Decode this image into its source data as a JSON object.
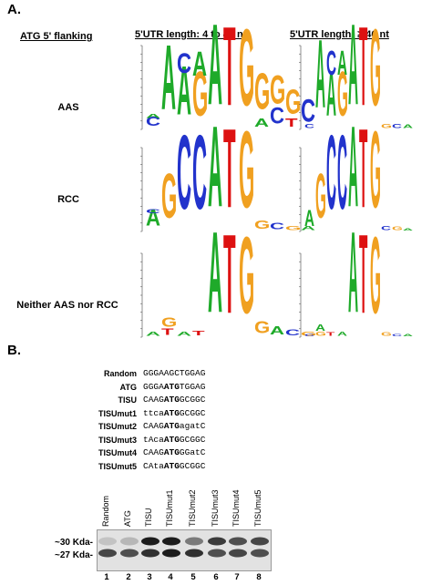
{
  "panelA": {
    "letter": "A.",
    "header_left": "ATG  5' flanking",
    "header_col1": "5'UTR length: 4 to 45 nt",
    "header_col2": "5'UTR length: ≥ 46 nt",
    "rows": [
      {
        "label": "AAS"
      },
      {
        "label": "RCC"
      },
      {
        "label": "Neither AAS nor RCC"
      }
    ],
    "logo_colors": {
      "A": "#1faa2a",
      "C": "#2233cc",
      "G": "#f0a020",
      "T": "#dd1111"
    }
  },
  "panelB": {
    "letter": "B.",
    "sequences": [
      {
        "name": "Random",
        "pre": "GGGAAGCTGGAG",
        "atg": "",
        "post": ""
      },
      {
        "name": "ATG",
        "pre": "GGGA",
        "atg": "ATG",
        "post": "TGGAG"
      },
      {
        "name": "TISU",
        "pre": "CAAG",
        "atg": "ATG",
        "post": "GCGGC"
      },
      {
        "name": "TISUmut1",
        "pre": "ttca",
        "atg": "ATG",
        "post": "GCGGC"
      },
      {
        "name": "TISUmut2",
        "pre": "CAAG",
        "atg": "ATG",
        "post": "agatC"
      },
      {
        "name": "TISUmut3",
        "pre": "tAca",
        "atg": "ATG",
        "post": "GCGGC"
      },
      {
        "name": "TISUmut4",
        "pre": "CAAG",
        "atg": "ATG",
        "post": "GGatC"
      },
      {
        "name": "TISUmut5",
        "pre": "CAta",
        "atg": "ATG",
        "post": "GCGGC"
      }
    ],
    "lane_labels": [
      "Random",
      "ATG",
      "TISU",
      "TISUmut1",
      "TISUmut2",
      "TISUmut3",
      "TISUmut4",
      "TISUmut5"
    ],
    "lane_numbers": [
      "1",
      "2",
      "3",
      "4",
      "5",
      "6",
      "7",
      "8"
    ],
    "mw_markers": [
      "~30 Kda-",
      "~27 Kda-"
    ]
  }
}
